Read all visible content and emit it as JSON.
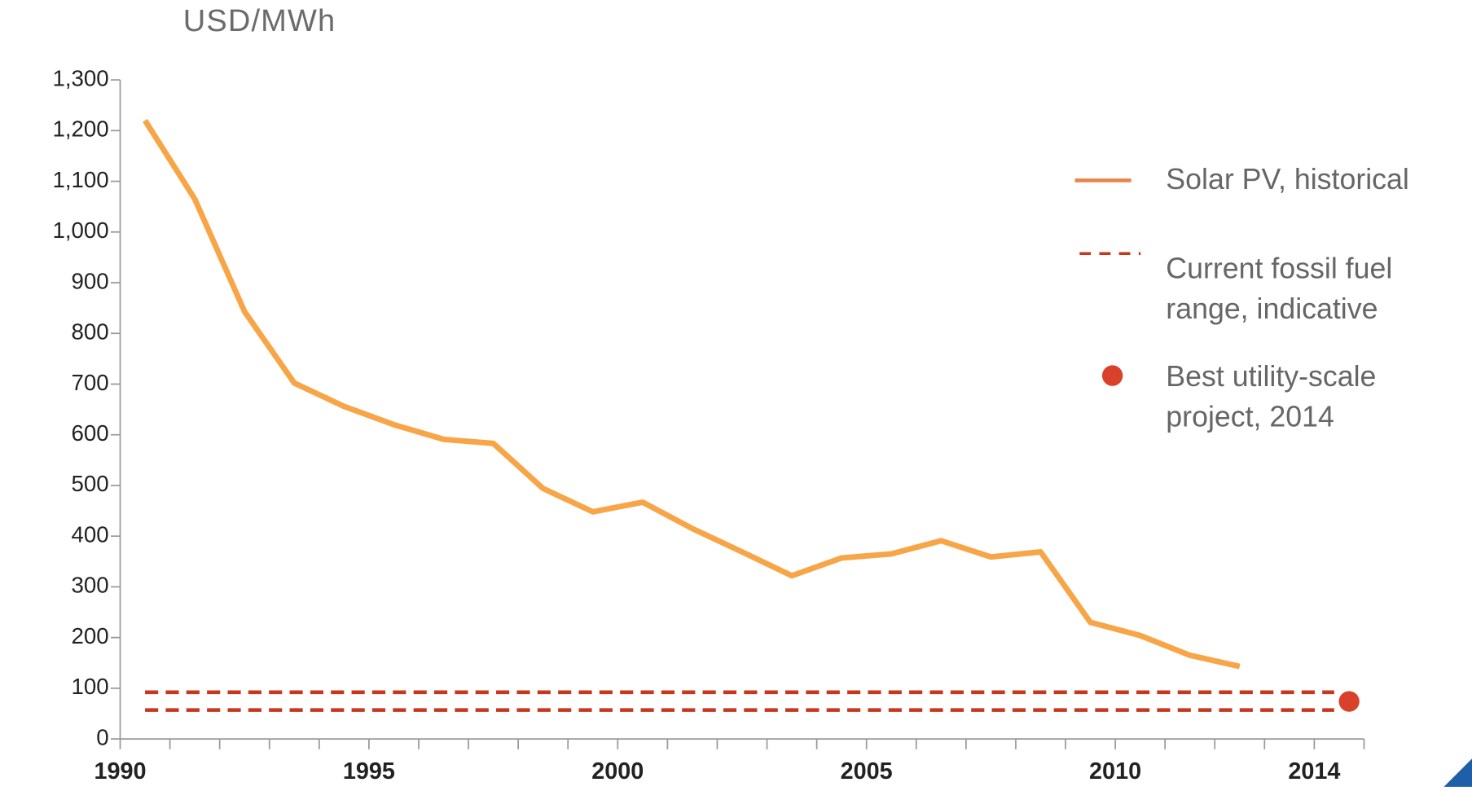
{
  "chart_data": {
    "type": "line",
    "y_axis_label": "USD/MWh",
    "xlim": [
      1990,
      2015
    ],
    "xticks": [
      1990,
      1995,
      2000,
      2005,
      2010,
      2014
    ],
    "xminor_ticks": [
      1991,
      1992,
      1993,
      1994,
      1996,
      1997,
      1998,
      1999,
      2001,
      2002,
      2003,
      2004,
      2006,
      2007,
      2008,
      2009,
      2011,
      2012,
      2013,
      2015
    ],
    "ylim": [
      0,
      1300
    ],
    "yticks": [
      0,
      100,
      200,
      300,
      400,
      500,
      600,
      700,
      800,
      900,
      {
        "value": 1000,
        "label": "1,000"
      },
      {
        "value": 1100,
        "label": "1,100"
      },
      {
        "value": 1200,
        "label": "1,200"
      },
      {
        "value": 1300,
        "label": "1,300"
      }
    ],
    "series": [
      {
        "name": "Solar PV, historical",
        "color": "#f8a547",
        "legend_color": "#e8844a",
        "x": [
          1990.5,
          1991.5,
          1992.5,
          1993.5,
          1994.5,
          1995.5,
          1996.5,
          1997.5,
          1998.5,
          1999.5,
          2000.5,
          2001.5,
          2002.5,
          2003.5,
          2004.5,
          2005.5,
          2006.5,
          2007.5,
          2008.5,
          2009.5,
          2010.5,
          2011.5,
          2012.5
        ],
        "values": [
          1220,
          1065,
          843,
          702,
          656,
          620,
          591,
          583,
          494,
          448,
          467,
          415,
          369,
          322,
          357,
          365,
          391,
          359,
          369,
          230,
          204,
          165,
          143
        ]
      },
      {
        "name": "Current fossil fuel range, indicative",
        "color": "#c8361c",
        "style": "range",
        "x": [
          1990.5,
          2014.4
        ],
        "values": [
          57,
          92
        ]
      },
      {
        "name": "Best utility-scale project, 2014",
        "color": "#d9412a",
        "style": "point",
        "x": [
          2014.7
        ],
        "values": [
          74
        ]
      }
    ]
  }
}
